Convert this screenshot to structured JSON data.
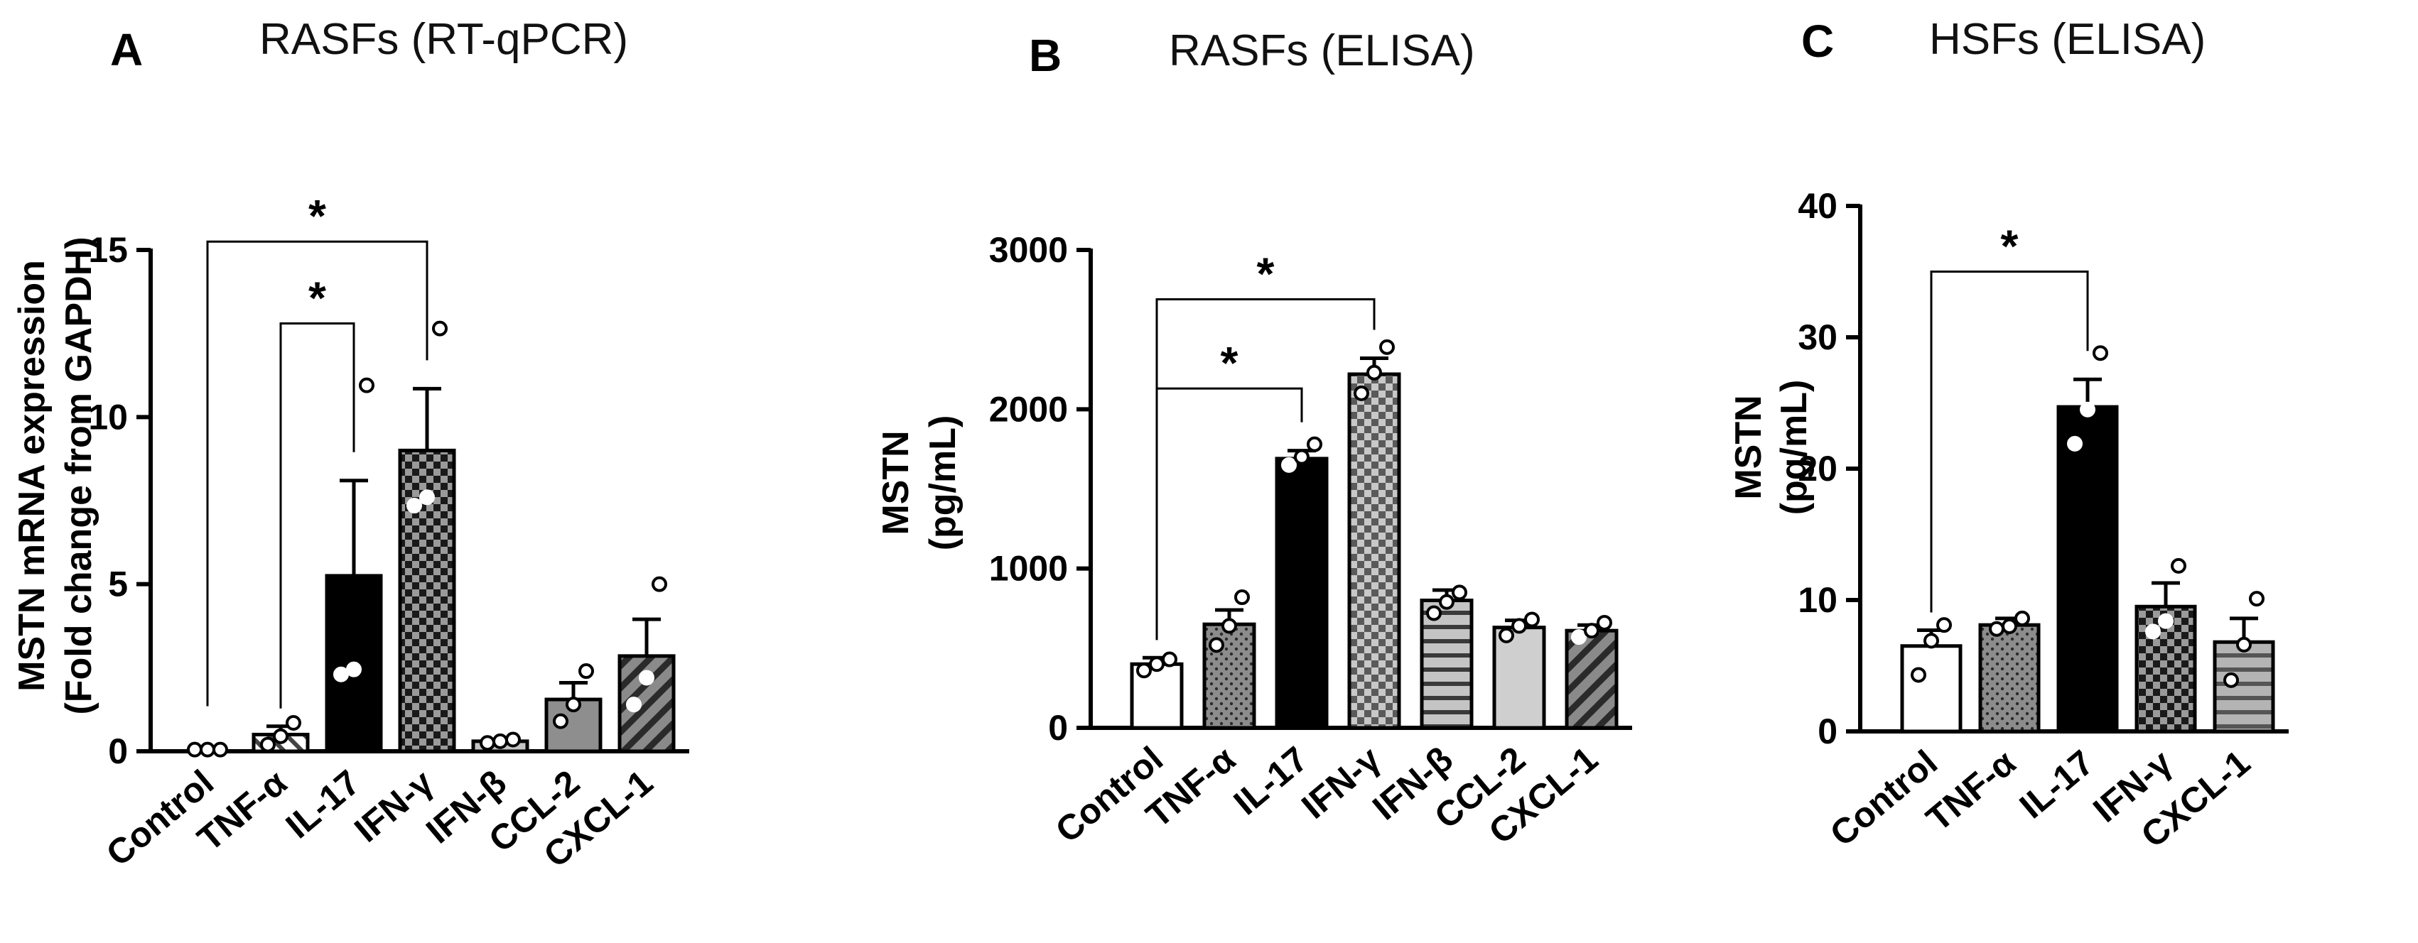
{
  "colors": {
    "ink": "#000000",
    "background": "#ffffff"
  },
  "chart_data": [
    {
      "type": "bar",
      "panel": "A",
      "title": "RASFs (RT-qPCR)",
      "ylabel_line1": "MSTN mRNA expression",
      "ylabel_line2": "(Fold change from GAPDH)",
      "ylim": [
        0,
        15
      ],
      "yticks": [
        0,
        5,
        10,
        15
      ],
      "categories": [
        "Control",
        "TNF-α",
        "IL-17",
        "IFN-γ",
        "IFN-β",
        "CCL-2",
        "CXCL-1"
      ],
      "values": [
        0.0,
        0.5,
        5.25,
        9.0,
        0.3,
        1.55,
        2.85
      ],
      "errors": [
        0.05,
        0.25,
        2.85,
        1.85,
        0.05,
        0.5,
        1.1
      ],
      "points": [
        [
          0.05,
          0.05,
          0.05
        ],
        [
          0.2,
          0.45,
          0.85
        ],
        [
          2.3,
          2.45,
          10.95
        ],
        [
          7.35,
          7.6,
          12.65
        ],
        [
          0.25,
          0.3,
          0.35
        ],
        [
          0.9,
          1.4,
          2.4
        ],
        [
          1.4,
          2.2,
          5.0
        ]
      ],
      "fills": [
        "white",
        "stripe-diag-light",
        "black",
        "checker",
        "stripe-horiz",
        "gray",
        "stripe-diag-dark"
      ],
      "significance": [
        {
          "from": "Control",
          "to": "IFN-γ",
          "y": 15.25,
          "label": "*"
        },
        {
          "from": "TNF-α",
          "to": "IL-17",
          "y": 12.8,
          "label": "*"
        }
      ]
    },
    {
      "type": "bar",
      "panel": "B",
      "title": "RASFs (ELISA)",
      "ylabel_line1": "MSTN",
      "ylabel_line2": "(pg/mL)",
      "ylim": [
        0,
        3000
      ],
      "yticks": [
        0,
        1000,
        2000,
        3000
      ],
      "categories": [
        "Control",
        "TNF-α",
        "IL-17",
        "IFN-γ",
        "IFN-β",
        "CCL-2",
        "CXCL-1"
      ],
      "values": [
        400,
        650,
        1690,
        2220,
        800,
        630,
        610
      ],
      "errors": [
        40,
        90,
        50,
        100,
        65,
        45,
        35
      ],
      "points": [
        [
          360,
          400,
          430
        ],
        [
          520,
          640,
          820
        ],
        [
          1650,
          1700,
          1780
        ],
        [
          2100,
          2230,
          2390
        ],
        [
          720,
          790,
          850
        ],
        [
          580,
          640,
          680
        ],
        [
          570,
          610,
          660
        ]
      ],
      "fills": [
        "white",
        "dots",
        "black",
        "checker-light",
        "stripe-horiz",
        "lightgray",
        "stripe-diag-dark"
      ],
      "significance": [
        {
          "from": "Control",
          "to": "IFN-γ",
          "y": 2690,
          "label": "*"
        },
        {
          "from": "Control",
          "to": "IL-17",
          "y": 2130,
          "label": "*"
        }
      ]
    },
    {
      "type": "bar",
      "panel": "C",
      "title": "HSFs (ELISA)",
      "ylabel_line1": "MSTN",
      "ylabel_line2": "(pg/mL)",
      "ylim": [
        0,
        40
      ],
      "yticks": [
        0,
        10,
        20,
        30,
        40
      ],
      "categories": [
        "Control",
        "TNF-α",
        "IL-17",
        "IFN-γ",
        "CXCL-1"
      ],
      "values": [
        6.5,
        8.1,
        24.7,
        9.5,
        6.8
      ],
      "errors": [
        1.2,
        0.5,
        2.1,
        1.8,
        1.8
      ],
      "points": [
        [
          4.3,
          6.9,
          8.1
        ],
        [
          7.8,
          8.0,
          8.6
        ],
        [
          21.9,
          24.5,
          28.8
        ],
        [
          7.6,
          8.4,
          12.6
        ],
        [
          3.9,
          6.6,
          10.1
        ]
      ],
      "fills": [
        "white",
        "dots",
        "black",
        "checker",
        "stripe-horiz-gray"
      ],
      "significance": [
        {
          "from": "Control",
          "to": "IL-17",
          "y": 35.0,
          "label": "*"
        }
      ]
    }
  ]
}
